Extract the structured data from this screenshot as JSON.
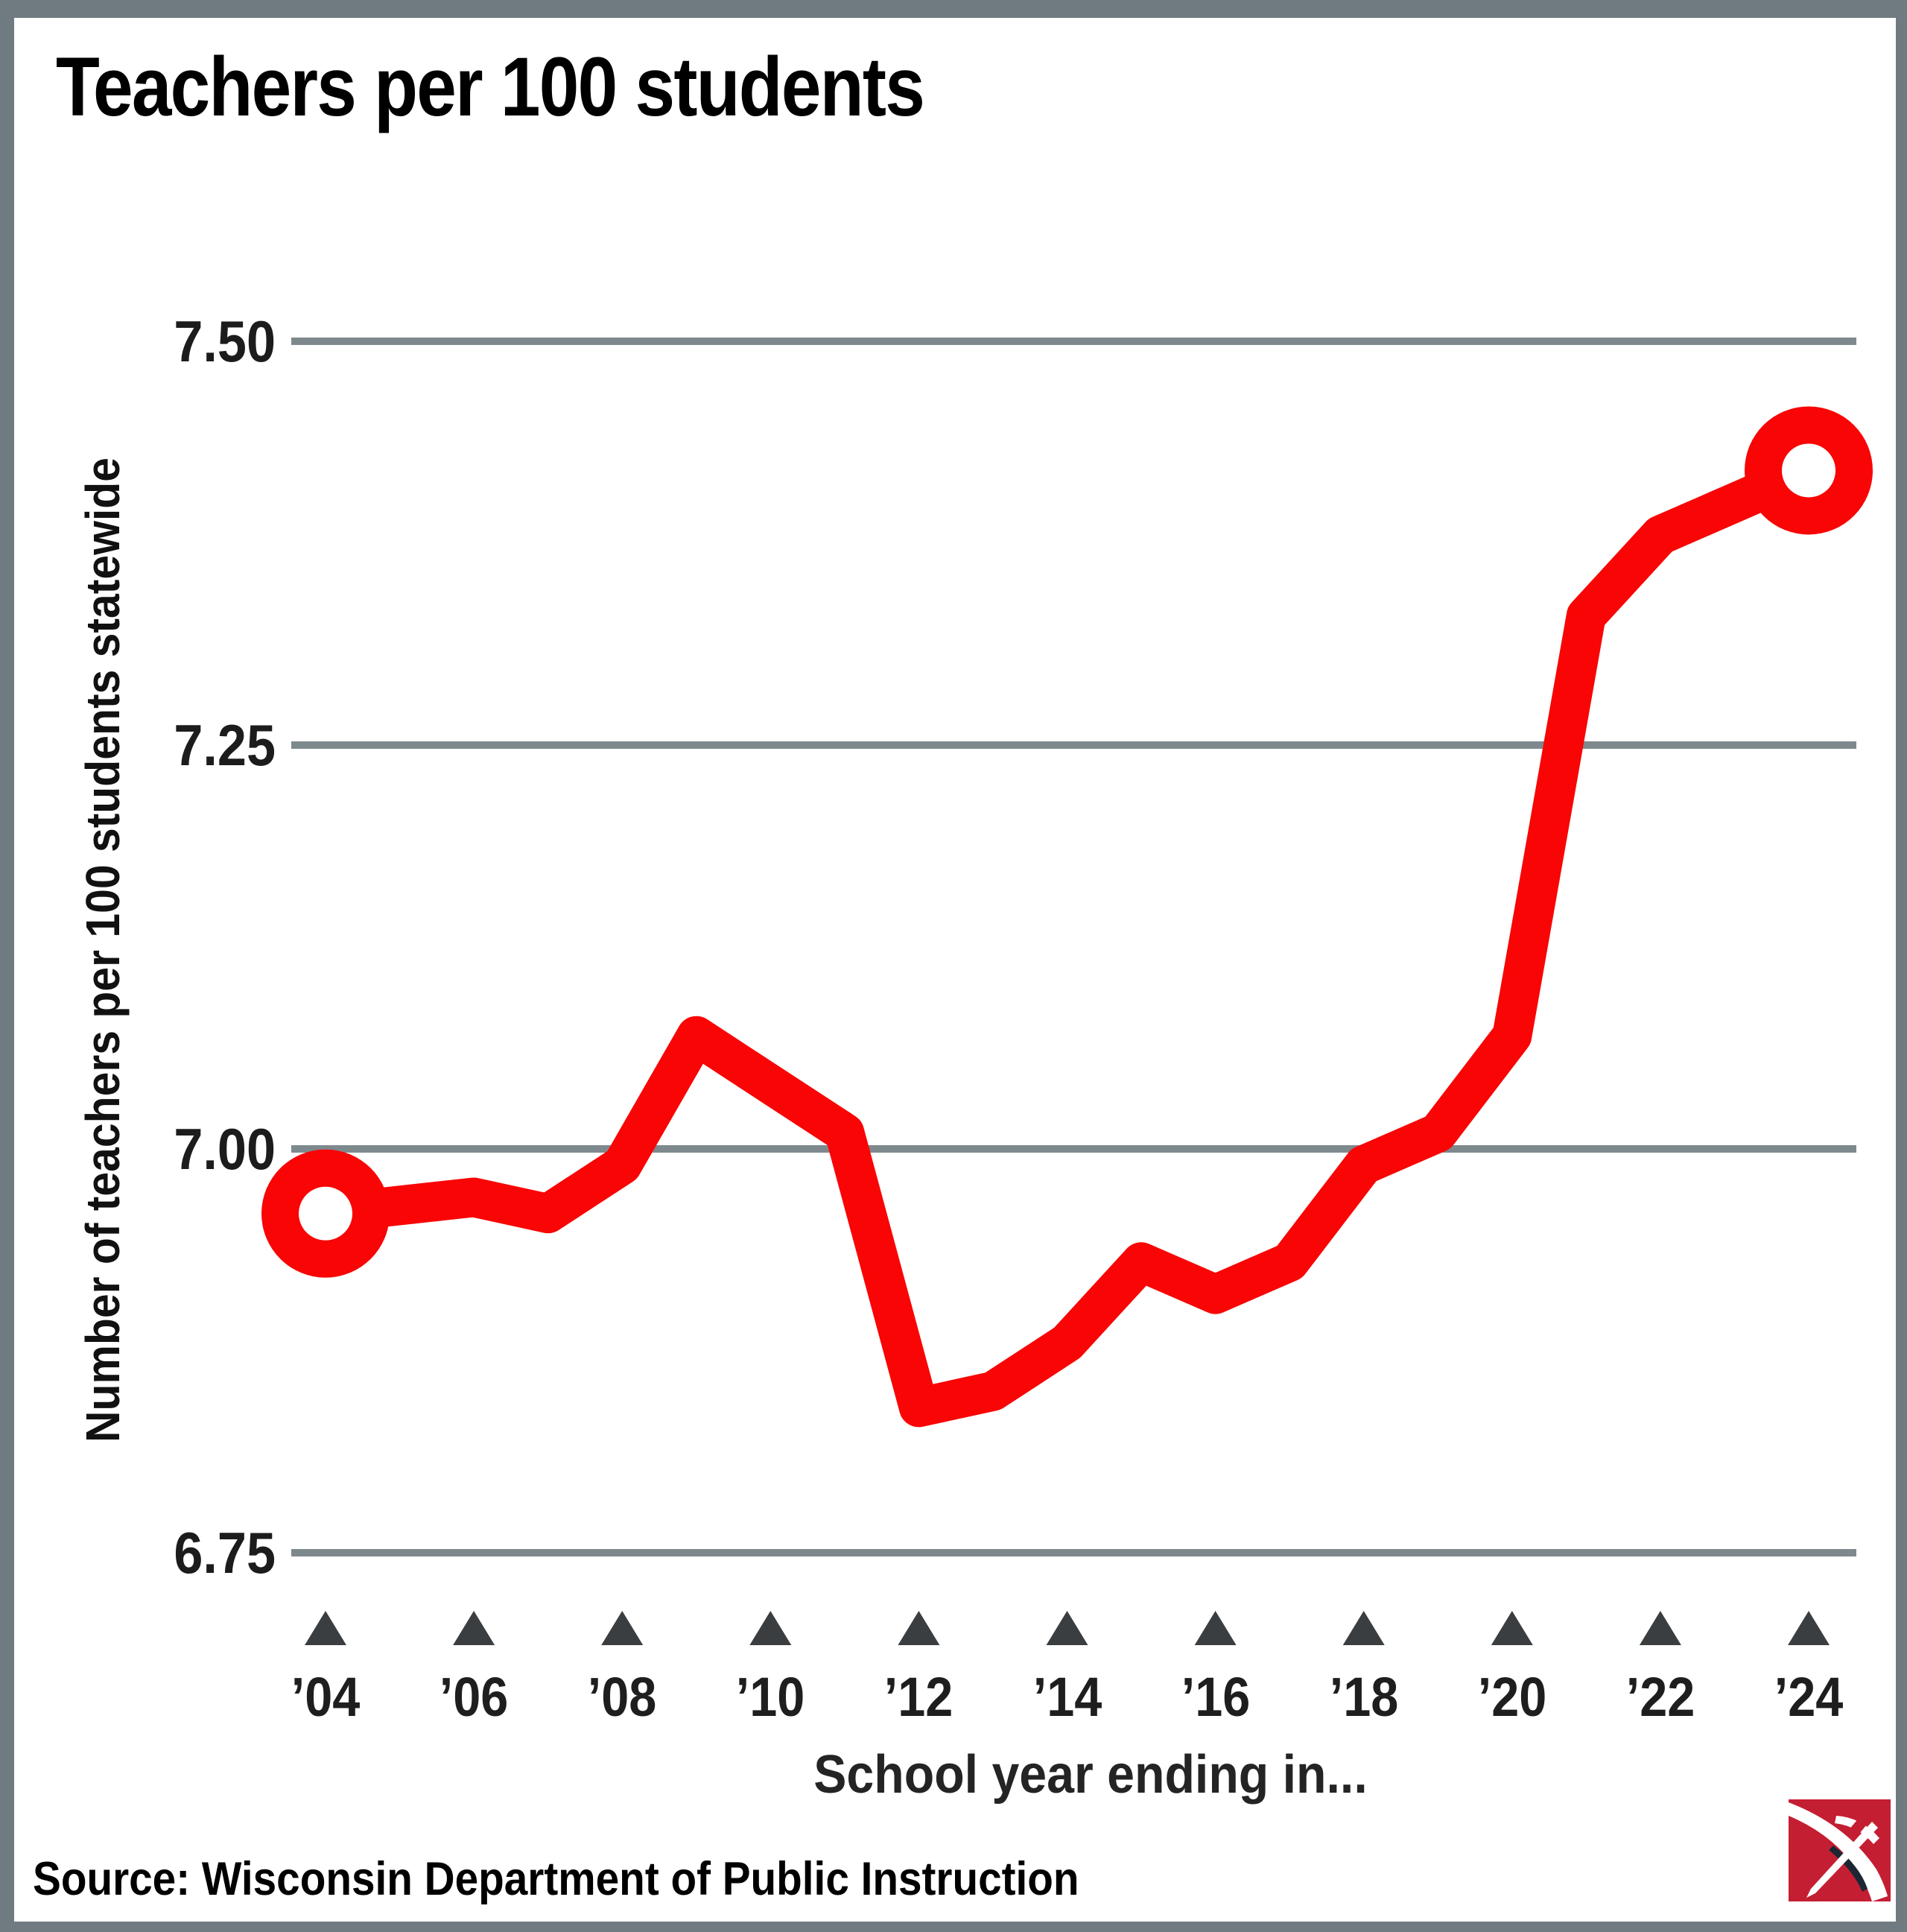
{
  "title": "Teachers per 100 students",
  "y_axis": {
    "label": "Number of teachers per 100 students statewide",
    "ticks": [
      {
        "label": "7.50",
        "value": 7.5
      },
      {
        "label": "7.25",
        "value": 7.25
      },
      {
        "label": "7.00",
        "value": 7.0
      },
      {
        "label": "6.75",
        "value": 6.75
      }
    ]
  },
  "x_axis": {
    "label": "School year ending in...",
    "ticks": [
      {
        "label": "’04",
        "year": 2004
      },
      {
        "label": "’06",
        "year": 2006
      },
      {
        "label": "’08",
        "year": 2008
      },
      {
        "label": "’10",
        "year": 2010
      },
      {
        "label": "’12",
        "year": 2012
      },
      {
        "label": "’14",
        "year": 2014
      },
      {
        "label": "’16",
        "year": 2016
      },
      {
        "label": "’18",
        "year": 2018
      },
      {
        "label": "’20",
        "year": 2020
      },
      {
        "label": "’22",
        "year": 2022
      },
      {
        "label": "’24",
        "year": 2024
      }
    ]
  },
  "source": "Source: Wisconsin Department of Public Instruction",
  "logo": "wisconsin-watch-logo",
  "colors": {
    "line": "#F90505",
    "gridline": "#7E898E",
    "tick_triangle": "#3A3E40",
    "frame": "#6F7B81",
    "background": "#FFFFFF",
    "logo_red": "#C41E33",
    "logo_dark": "#1C2733",
    "text": "#000000"
  },
  "chart_data": {
    "type": "line",
    "title": "Teachers per 100 students",
    "xlabel": "School year ending in...",
    "ylabel": "Number of teachers per 100 students statewide",
    "x": [
      2004,
      2005,
      2006,
      2007,
      2008,
      2009,
      2010,
      2011,
      2012,
      2013,
      2014,
      2015,
      2016,
      2017,
      2018,
      2019,
      2020,
      2021,
      2022,
      2023,
      2024
    ],
    "values": [
      6.96,
      6.965,
      6.97,
      6.96,
      6.99,
      7.07,
      7.04,
      7.01,
      6.84,
      6.85,
      6.88,
      6.93,
      6.91,
      6.93,
      6.99,
      7.01,
      7.07,
      7.33,
      7.38,
      7.4,
      7.42
    ],
    "ylim": [
      6.7,
      7.55
    ],
    "y_gridlines": [
      7.5,
      7.25,
      7.0,
      6.75
    ],
    "grid": "horizontal-only",
    "legend": "none",
    "markers": "ring markers on first and last points"
  }
}
